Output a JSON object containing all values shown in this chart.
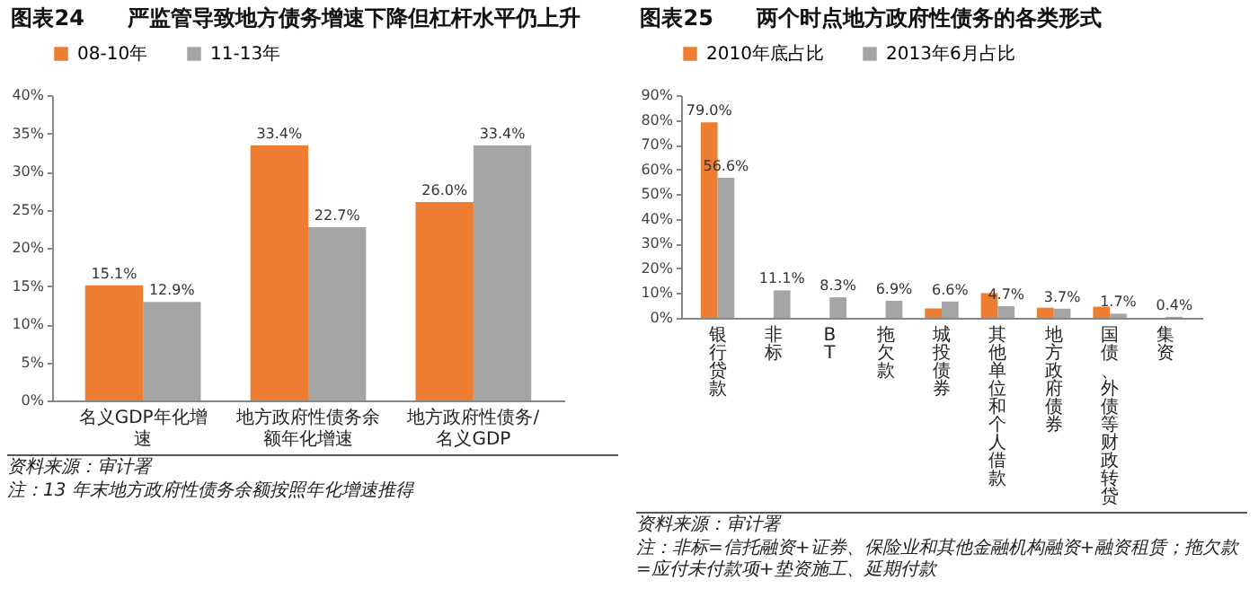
{
  "chart_data": [
    {
      "type": "bar",
      "title": "图表24　　严监管导致地方债务增速下降但杠杆水平仍上升",
      "categories": [
        "名义GDP年化增速",
        "地方政府性债务余额年化增速",
        "地方政府性债务/名义GDP"
      ],
      "series": [
        {
          "name": "08-10年",
          "color": "#ed7d31",
          "values": [
            15.1,
            33.4,
            26.0
          ],
          "value_labels": [
            "15.1%",
            "33.4%",
            "26.0%"
          ]
        },
        {
          "name": "11-13年",
          "color": "#a5a5a5",
          "values": [
            12.9,
            22.7,
            33.4
          ],
          "value_labels": [
            "12.9%",
            "22.7%",
            "33.4%"
          ]
        }
      ],
      "ylim": [
        0,
        40
      ],
      "yticks": [
        {
          "value": 0,
          "label": "0%"
        },
        {
          "value": 5,
          "label": "5%"
        },
        {
          "value": 10,
          "label": "10%"
        },
        {
          "value": 15,
          "label": "15%"
        },
        {
          "value": 20,
          "label": "20%"
        },
        {
          "value": 25,
          "label": "25%"
        },
        {
          "value": 30,
          "label": "30%"
        },
        {
          "value": 35,
          "label": "35%"
        },
        {
          "value": 40,
          "label": "40%"
        }
      ],
      "legend": "top",
      "annotations": [
        "资料来源：审计署",
        "注：13 年末地方政府性债务余额按照年化增速推得"
      ]
    },
    {
      "type": "bar",
      "title": "图表25　　两个时点地方政府性债务的各类形式",
      "categories": [
        "银行贷款",
        "非标",
        "BT",
        "拖欠款",
        "城投债券",
        "其他单位和个人借款",
        "地方政府债券",
        "国债、外债等财政转贷",
        "集资"
      ],
      "series": [
        {
          "name": "2010年底占比",
          "color": "#ed7d31",
          "values": [
            79.0,
            null,
            null,
            null,
            3.8,
            10.0,
            4.1,
            4.5,
            null
          ],
          "value_labels": [
            "79.0%",
            null,
            null,
            null,
            null,
            null,
            null,
            null,
            null
          ]
        },
        {
          "name": "2013年6月占比",
          "color": "#a5a5a5",
          "values": [
            56.6,
            11.1,
            8.3,
            6.9,
            6.6,
            4.7,
            3.7,
            1.7,
            0.4
          ],
          "value_labels": [
            "56.6%",
            "11.1%",
            "8.3%",
            "6.9%",
            "6.6%",
            "4.7%",
            "3.7%",
            "1.7%",
            "0.4%"
          ]
        }
      ],
      "ylim": [
        0,
        90
      ],
      "yticks": [
        {
          "value": 0,
          "label": "0%"
        },
        {
          "value": 10,
          "label": "10%"
        },
        {
          "value": 20,
          "label": "20%"
        },
        {
          "value": 30,
          "label": "30%"
        },
        {
          "value": 40,
          "label": "40%"
        },
        {
          "value": 50,
          "label": "50%"
        },
        {
          "value": 60,
          "label": "60%"
        },
        {
          "value": 70,
          "label": "70%"
        },
        {
          "value": 80,
          "label": "80%"
        },
        {
          "value": 90,
          "label": "90%"
        }
      ],
      "legend": "top",
      "annotations": [
        "资料来源：审计署",
        "注：非标=信托融资+证券、保险业和其他金融机构融资+融资租赁；拖欠款=应付未付款项+垫资施工、延期付款"
      ]
    }
  ]
}
